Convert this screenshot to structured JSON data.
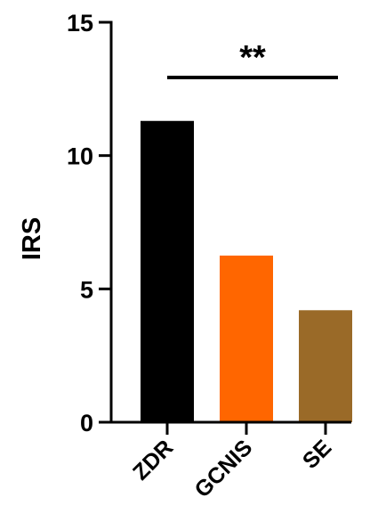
{
  "chart_data": {
    "type": "bar",
    "categories": [
      "ZDR",
      "GCNIS",
      "SE"
    ],
    "values": [
      11.3,
      6.25,
      4.2
    ],
    "colors": [
      "#000000",
      "#ff6600",
      "#9a6a28"
    ],
    "title": "",
    "xlabel": "",
    "ylabel": "IRS",
    "ylim": [
      0,
      15
    ],
    "yticks": [
      0,
      5,
      10,
      15
    ],
    "grid": false,
    "legend": "none",
    "annotations": [
      {
        "text": "**",
        "from_category": "ZDR",
        "to_category": "SE"
      }
    ]
  }
}
